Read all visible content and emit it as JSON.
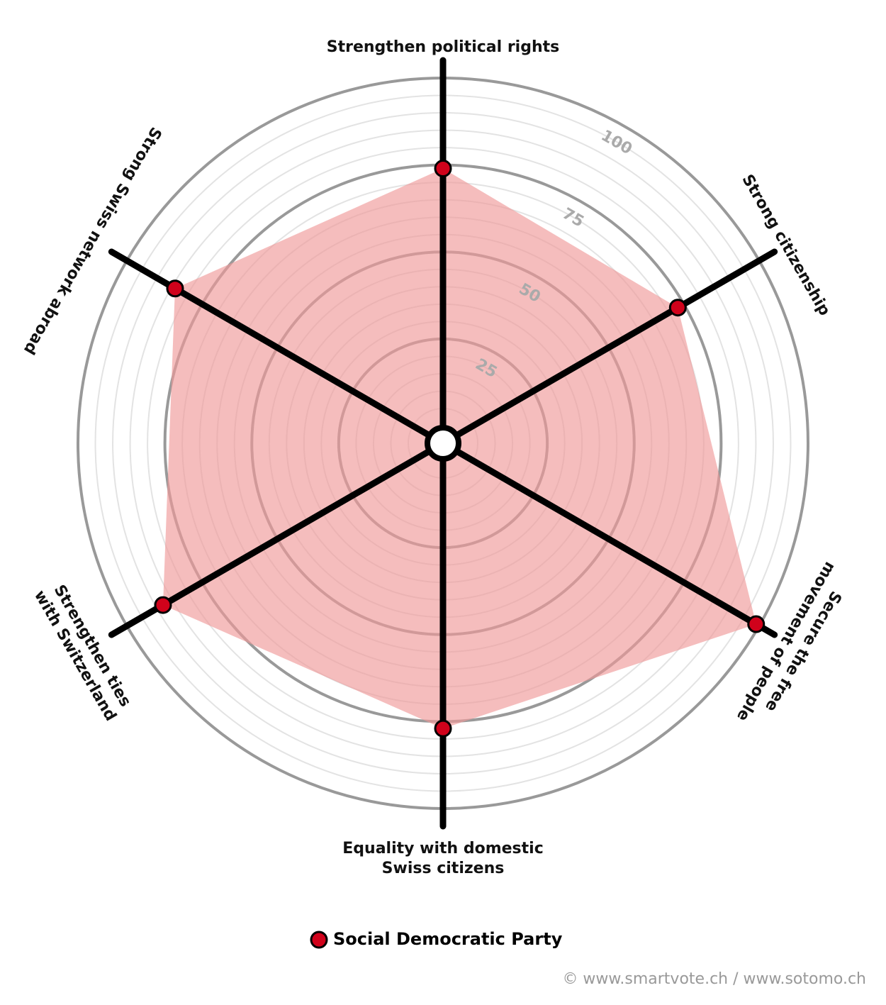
{
  "chart_data": {
    "type": "radar",
    "categories": [
      [
        "Strengthen political rights"
      ],
      [
        "Strong citizenship"
      ],
      [
        "Secure the free",
        "movement of people"
      ],
      [
        "Equality with domestic",
        "Swiss citizens"
      ],
      [
        "Strengthen ties",
        "with Switzerland"
      ],
      [
        "Strong Swiss network abroad"
      ]
    ],
    "series": [
      {
        "name": "Social Democratic Party",
        "color": "#d0021b",
        "fill": "#ef9a9a",
        "values": [
          74,
          73,
          99,
          77,
          88,
          84
        ]
      }
    ],
    "rlim": [
      0,
      100
    ],
    "rticks": [
      25,
      50,
      75,
      100
    ],
    "grid": true,
    "source": "© www.smartvote.ch / www.sotomo.ch"
  }
}
